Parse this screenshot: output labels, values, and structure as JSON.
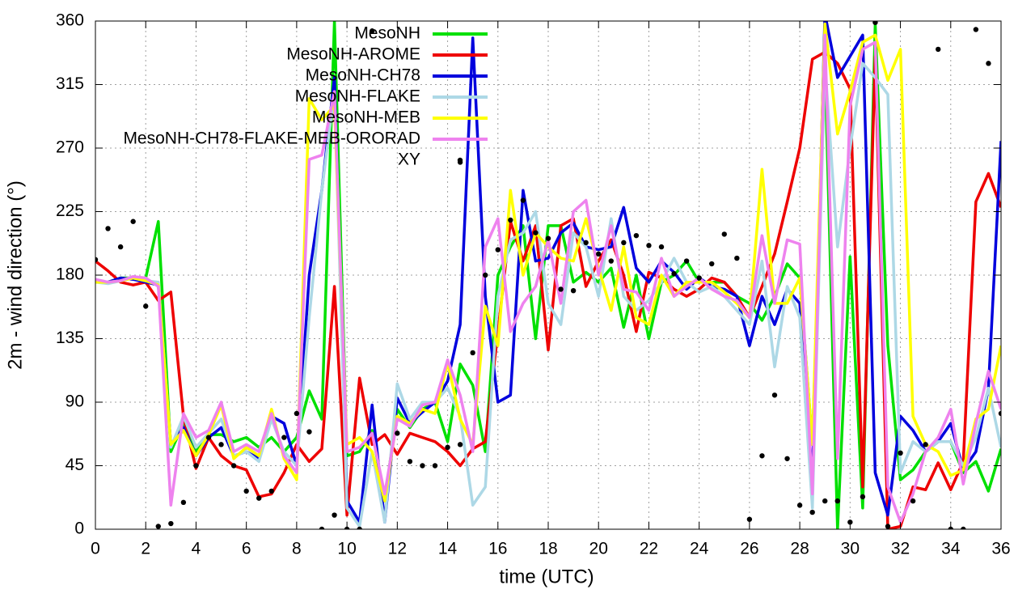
{
  "chart_data": {
    "type": "line",
    "xlabel": "time (UTC)",
    "ylabel": "2m - wind direction (°)",
    "xlim": [
      0,
      36
    ],
    "ylim": [
      0,
      360
    ],
    "xticks": [
      0,
      2,
      4,
      6,
      8,
      10,
      12,
      14,
      16,
      18,
      20,
      22,
      24,
      26,
      28,
      30,
      32,
      34,
      36
    ],
    "yticks": [
      0,
      45,
      90,
      135,
      180,
      225,
      270,
      315,
      360
    ],
    "grid": true,
    "legend": "top-left",
    "x": [
      0,
      0.5,
      1,
      1.5,
      2,
      2.5,
      3,
      3.5,
      4,
      4.5,
      5,
      5.5,
      6,
      6.5,
      7,
      7.5,
      8,
      8.5,
      9,
      9.5,
      10,
      10.5,
      11,
      11.5,
      12,
      12.5,
      13,
      13.5,
      14,
      14.5,
      15,
      15.5,
      16,
      16.5,
      17,
      17.5,
      18,
      18.5,
      19,
      19.5,
      20,
      20.5,
      21,
      21.5,
      22,
      22.5,
      23,
      23.5,
      24,
      24.5,
      25,
      25.5,
      26,
      26.5,
      27,
      27.5,
      28,
      28.5,
      29,
      29.5,
      30,
      30.5,
      31,
      31.5,
      32,
      32.5,
      33,
      33.5,
      34,
      34.5,
      35,
      35.5,
      36
    ],
    "series": [
      {
        "name": "MesoNH",
        "color": "#00e000",
        "values": [
          175,
          175,
          178,
          178,
          178,
          218,
          55,
          75,
          55,
          67,
          67,
          62,
          65,
          58,
          65,
          55,
          65,
          98,
          78,
          360,
          52,
          55,
          70,
          20,
          85,
          72,
          85,
          90,
          62,
          117,
          102,
          55,
          180,
          200,
          215,
          135,
          215,
          215,
          175,
          182,
          175,
          185,
          143,
          180,
          135,
          175,
          180,
          190,
          175,
          175,
          175,
          165,
          160,
          148,
          165,
          188,
          178,
          60,
          330,
          0,
          193,
          15,
          358,
          130,
          35,
          42,
          55,
          62,
          62,
          40,
          48,
          27,
          57
        ]
      },
      {
        "name": "MesoNH-AROME",
        "color": "#ee0000",
        "values": [
          190,
          183,
          175,
          173,
          175,
          162,
          168,
          80,
          43,
          65,
          52,
          45,
          42,
          23,
          25,
          40,
          60,
          48,
          57,
          172,
          10,
          107,
          60,
          67,
          53,
          68,
          65,
          62,
          55,
          45,
          57,
          62,
          140,
          218,
          190,
          215,
          127,
          215,
          220,
          172,
          190,
          205,
          180,
          140,
          182,
          178,
          170,
          165,
          170,
          178,
          175,
          165,
          150,
          172,
          195,
          232,
          270,
          333,
          338,
          330,
          312,
          30,
          335,
          0,
          2,
          30,
          28,
          47,
          28,
          48,
          232,
          252,
          228
        ]
      },
      {
        "name": "MesoNH-CH78",
        "color": "#0000dd",
        "values": [
          175,
          175,
          178,
          177,
          175,
          173,
          60,
          72,
          52,
          65,
          72,
          52,
          55,
          50,
          80,
          75,
          45,
          180,
          240,
          320,
          20,
          5,
          88,
          5,
          93,
          75,
          83,
          90,
          105,
          145,
          348,
          165,
          90,
          95,
          240,
          190,
          192,
          210,
          217,
          200,
          198,
          200,
          228,
          185,
          175,
          190,
          182,
          170,
          178,
          172,
          170,
          165,
          130,
          165,
          145,
          170,
          160,
          35,
          365,
          320,
          335,
          350,
          40,
          10,
          80,
          70,
          55,
          62,
          75,
          42,
          55,
          100,
          275
        ]
      },
      {
        "name": "MesoNH-FLAKE",
        "color": "#add8e6",
        "values": [
          175,
          174,
          176,
          178,
          176,
          175,
          58,
          80,
          58,
          68,
          78,
          52,
          55,
          48,
          78,
          55,
          45,
          150,
          240,
          310,
          15,
          2,
          55,
          5,
          103,
          78,
          90,
          90,
          100,
          80,
          17,
          30,
          165,
          205,
          210,
          225,
          160,
          145,
          210,
          200,
          165,
          220,
          165,
          155,
          162,
          175,
          192,
          175,
          168,
          172,
          165,
          155,
          145,
          190,
          115,
          172,
          150,
          15,
          330,
          200,
          270,
          330,
          320,
          308,
          40,
          62,
          55,
          62,
          62,
          45,
          65,
          100,
          58
        ]
      },
      {
        "name": "MesoNH-MEB",
        "color": "#ffff00",
        "values": [
          175,
          175,
          176,
          178,
          176,
          173,
          60,
          70,
          52,
          67,
          88,
          50,
          58,
          52,
          85,
          50,
          35,
          305,
          290,
          300,
          60,
          65,
          55,
          20,
          80,
          75,
          85,
          82,
          118,
          78,
          60,
          158,
          130,
          240,
          180,
          210,
          200,
          192,
          190,
          220,
          185,
          155,
          200,
          150,
          145,
          180,
          165,
          175,
          175,
          175,
          168,
          160,
          150,
          255,
          160,
          160,
          178,
          60,
          358,
          280,
          310,
          345,
          350,
          318,
          340,
          80,
          60,
          55,
          38,
          42,
          78,
          85,
          130
        ]
      },
      {
        "name": "MesoNH-CH78-FLAKE-MEB-ORORAD",
        "color": "#ee82ee",
        "values": [
          177,
          175,
          176,
          179,
          178,
          172,
          17,
          82,
          65,
          70,
          90,
          55,
          60,
          55,
          82,
          52,
          40,
          262,
          265,
          310,
          55,
          58,
          68,
          25,
          78,
          73,
          88,
          90,
          120,
          95,
          55,
          200,
          220,
          140,
          160,
          172,
          205,
          160,
          225,
          233,
          180,
          215,
          170,
          168,
          155,
          192,
          165,
          172,
          178,
          170,
          165,
          162,
          150,
          208,
          160,
          205,
          202,
          25,
          350,
          50,
          300,
          340,
          345,
          30,
          5,
          25,
          55,
          65,
          85,
          32,
          75,
          112,
          85
        ]
      },
      {
        "name": "XY",
        "color": "#000000",
        "style": "points",
        "x": [
          0,
          0.5,
          1,
          1.5,
          2,
          2.5,
          3,
          3.5,
          4,
          4.5,
          5,
          5.5,
          6,
          6.5,
          7,
          7.5,
          8,
          8.5,
          9,
          9.5,
          10,
          10.5,
          11,
          12,
          12.5,
          13,
          13.5,
          14,
          14.5,
          14.5,
          15,
          15.5,
          16,
          16.5,
          17,
          17.5,
          18,
          18.5,
          19,
          19.5,
          20,
          20.5,
          21,
          21.5,
          22,
          22.5,
          23,
          23.5,
          24,
          24.5,
          25,
          25.5,
          26,
          26.5,
          27,
          27.5,
          28,
          28.5,
          29,
          29.5,
          30,
          30.5,
          31,
          31.5,
          32,
          32.5,
          33,
          33.5,
          34,
          34.5,
          35,
          35.5,
          36
        ],
        "values": [
          191,
          213,
          200,
          218,
          158,
          2,
          4,
          19,
          45,
          65,
          60,
          45,
          27,
          22,
          27,
          65,
          82,
          69,
          0,
          10,
          0,
          0,
          353,
          68,
          48,
          45,
          45,
          58,
          60,
          260,
          125,
          180,
          198,
          219,
          233,
          210,
          206,
          170,
          169,
          203,
          195,
          190,
          203,
          208,
          201,
          200,
          181,
          190,
          178,
          188,
          209,
          192,
          7,
          52,
          95,
          50,
          17,
          12,
          20,
          20,
          5,
          23,
          359,
          2,
          54,
          20,
          60,
          340,
          0,
          0,
          354,
          330,
          82
        ]
      }
    ]
  }
}
